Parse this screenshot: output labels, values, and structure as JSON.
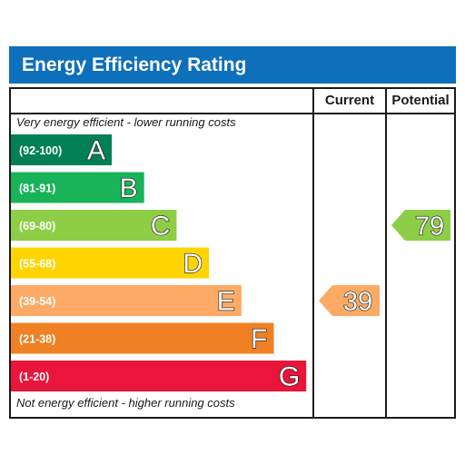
{
  "title": "Energy Efficiency Rating",
  "columns": {
    "current": "Current",
    "potential": "Potential"
  },
  "notes": {
    "top": "Very energy efficient - lower running costs",
    "bottom": "Not energy efficient - higher running costs"
  },
  "chart_data": {
    "type": "bar",
    "categories": [
      "A",
      "B",
      "C",
      "D",
      "E",
      "F",
      "G"
    ],
    "ranges": [
      "(92-100)",
      "(81-91)",
      "(69-80)",
      "(55-68)",
      "(39-54)",
      "(21-38)",
      "(1-20)"
    ],
    "colors": [
      "#008054",
      "#19b459",
      "#8dce46",
      "#ffd500",
      "#fcaa65",
      "#ef8023",
      "#e9153b"
    ],
    "current": {
      "value": 39,
      "band": "E",
      "color": "#fcaa65"
    },
    "potential": {
      "value": 79,
      "band": "C",
      "color": "#8dce46"
    }
  }
}
